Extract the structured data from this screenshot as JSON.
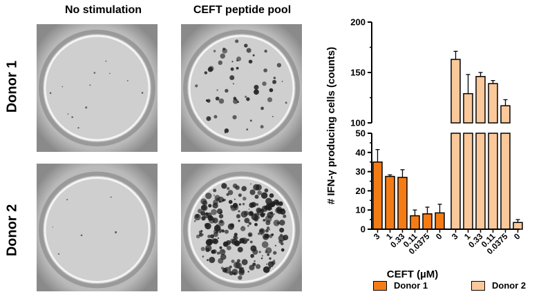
{
  "figure": {
    "columns": [
      "No stimulation",
      "CEFT peptide pool"
    ],
    "rows": [
      "Donor 1",
      "Donor 2"
    ]
  },
  "colors": {
    "donor1": "#f57c14",
    "donor2": "#fac89a",
    "well_bg": "#c9c9c9",
    "spot": "#1e1e1e"
  },
  "chart_data": {
    "type": "bar",
    "title": "",
    "xlabel": "CEFT (µM)",
    "ylabel": "# IFN-γ producing cells (counts)",
    "categories": [
      "3",
      "1",
      "0.33",
      "0.11",
      "0.0375",
      "0"
    ],
    "series": [
      {
        "name": "Donor 1",
        "values": [
          35,
          27.5,
          27,
          7,
          8,
          8.5
        ],
        "errors": [
          6.5,
          0.8,
          4,
          3,
          3.5,
          4.5
        ]
      },
      {
        "name": "Donor 2",
        "values": [
          163,
          129,
          146,
          139,
          117,
          3.5
        ],
        "errors": [
          8,
          19,
          4,
          3,
          6,
          1.5
        ]
      }
    ],
    "y_axis": {
      "segments": [
        {
          "range": [
            0,
            50
          ],
          "ticks": [
            "0",
            "10",
            "20",
            "30",
            "40",
            "50"
          ]
        },
        {
          "range": [
            100,
            200
          ],
          "ticks": [
            "100",
            "150",
            "200"
          ]
        }
      ],
      "break": [
        50,
        100
      ]
    },
    "legend_position": "bottom"
  }
}
